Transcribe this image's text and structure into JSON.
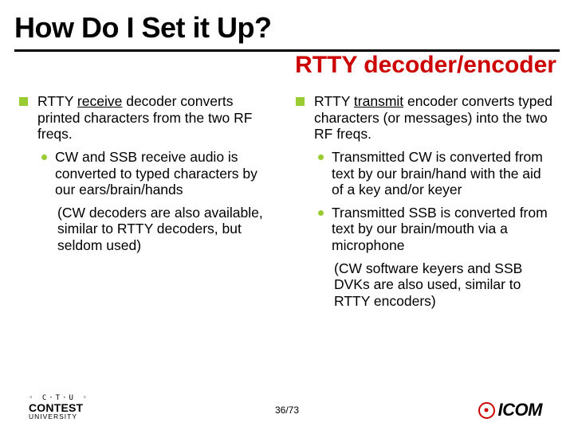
{
  "title": "How Do I Set it Up?",
  "subtitle": "RTTY decoder/encoder",
  "colors": {
    "accent_red": "#cc0000",
    "bullet_green": "#99cc33",
    "text": "#000000",
    "background": "#ffffff"
  },
  "left": {
    "heading_prefix": "RTTY ",
    "heading_underlined": "receive",
    "heading_suffix": " decoder converts printed characters from the two RF freqs.",
    "sub": "CW and SSB receive audio is converted to typed characters by our ears/brain/hands",
    "aside": "(CW decoders are also available, similar to RTTY decoders, but seldom used)"
  },
  "right": {
    "heading_prefix": "RTTY ",
    "heading_underlined": "transmit",
    "heading_suffix": " encoder converts typed characters (or messages) into the two RF freqs.",
    "sub1": "Transmitted CW is converted from text by our brain/hand with the aid of a key and/or keyer",
    "sub2": "Transmitted SSB is converted from text by our brain/mouth via a microphone",
    "aside": "(CW software keyers and SSB DVKs are also used, similar to RTTY encoders)"
  },
  "footer": {
    "ctu_top": "◦ C·T·U ◦",
    "ctu_main": "CONTEST",
    "ctu_sub": "UNIVERSITY",
    "page": "36/73",
    "icom": "ICOM"
  },
  "typography": {
    "title_fontsize": 36,
    "subtitle_fontsize": 30,
    "body_fontsize": 18
  }
}
